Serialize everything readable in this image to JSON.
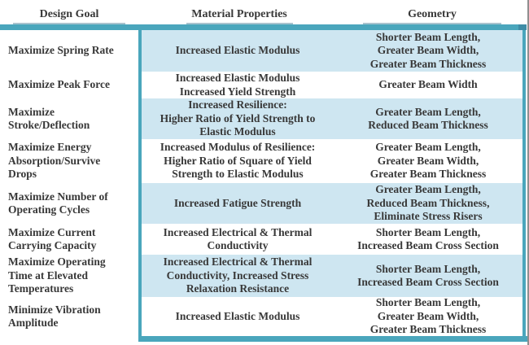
{
  "colors": {
    "accent_teal": "#4aa6bc",
    "shaded_cell_blue": "#cee6f1",
    "header_underline": "#aac3ce",
    "text": "#383838",
    "page_edge_gray": "#8f8f8f"
  },
  "table": {
    "headers": {
      "design_goal": "Design Goal",
      "material_properties": "Material Properties",
      "geometry": "Geometry"
    },
    "rows": [
      {
        "goal": "Maximize Spring Rate",
        "material": "Increased Elastic Modulus",
        "geometry": "Shorter Beam Length,\nGreater Beam Width,\nGreater Beam Thickness",
        "shaded": true
      },
      {
        "goal": "Maximize Peak Force",
        "material": "Increased Elastic Modulus\nIncreased Yield Strength",
        "geometry": "Greater Beam Width",
        "shaded": false
      },
      {
        "goal": "Maximize\nStroke/Deflection",
        "material": "Increased Resilience:\nHigher Ratio of Yield Strength to\nElastic Modulus",
        "geometry": "Greater Beam Length,\nReduced Beam Thickness",
        "shaded": true
      },
      {
        "goal": "Maximize Energy\nAbsorption/Survive\nDrops",
        "material": "Increased Modulus of Resilience:\nHigher Ratio of Square of Yield\nStrength to Elastic Modulus",
        "geometry": "Greater Beam Length,\nGreater Beam Width,\nGreater Beam Thickness",
        "shaded": false
      },
      {
        "goal": "Maximize Number of\nOperating Cycles",
        "material": "Increased Fatigue Strength",
        "geometry": "Greater Beam Length,\nReduced Beam Thickness,\nEliminate Stress Risers",
        "shaded": true
      },
      {
        "goal": "Maximize Current\nCarrying Capacity",
        "material": "Increased Electrical & Thermal\nConductivity",
        "geometry": "Shorter Beam Length,\nIncreased Beam Cross Section",
        "shaded": false
      },
      {
        "goal": "Maximize Operating\nTime at Elevated\nTemperatures",
        "material": "Increased Electrical & Thermal\nConductivity, Increased Stress\nRelaxation Resistance",
        "geometry": "Shorter Beam Length,\nIncreased Beam Cross Section",
        "shaded": true
      },
      {
        "goal": "Minimize Vibration\nAmplitude",
        "material": "Increased Elastic Modulus",
        "geometry": "Shorter Beam Length,\nGreater Beam Width,\nGreater Beam Thickness",
        "shaded": false
      }
    ]
  }
}
